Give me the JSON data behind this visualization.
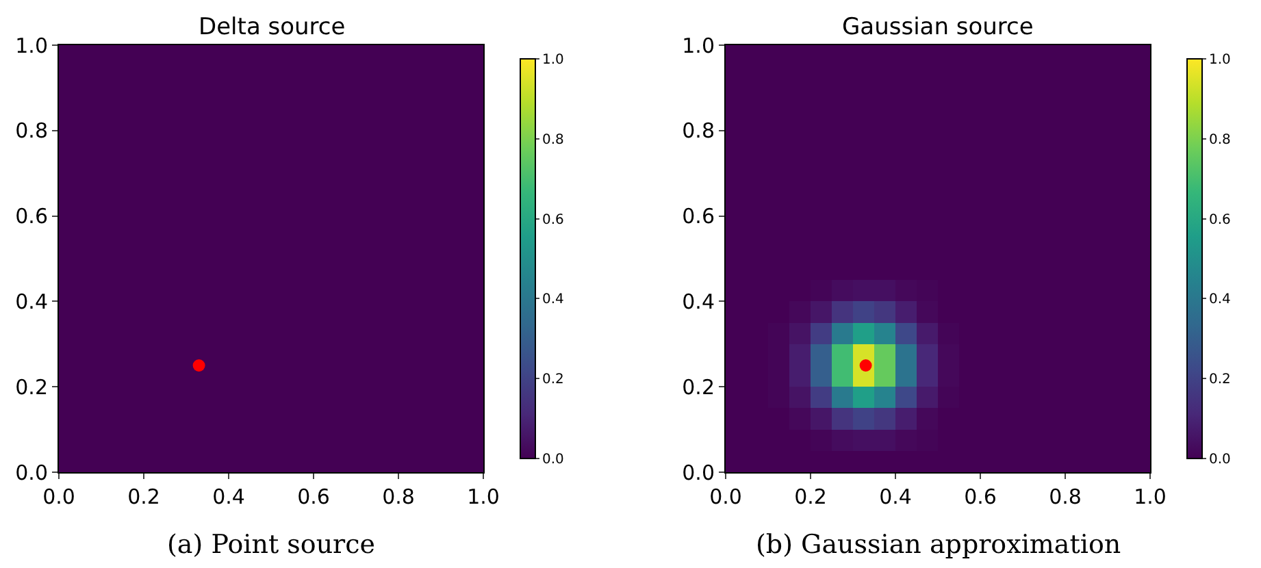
{
  "chart_data": [
    {
      "type": "heatmap",
      "title": "Delta source",
      "annotations": [
        "(a) Point source"
      ],
      "cells": [
        [
          0,
          0,
          0,
          0,
          0,
          0,
          0,
          0,
          0,
          0,
          0,
          0,
          0,
          0,
          0,
          0,
          0,
          0,
          0,
          0
        ],
        [
          0,
          0,
          0,
          0,
          0,
          0,
          0,
          0,
          0,
          0,
          0,
          0,
          0,
          0,
          0,
          0,
          0,
          0,
          0,
          0
        ],
        [
          0,
          0,
          0,
          0,
          0,
          0,
          0,
          0,
          0,
          0,
          0,
          0,
          0,
          0,
          0,
          0,
          0,
          0,
          0,
          0
        ],
        [
          0,
          0,
          0,
          0,
          0,
          0,
          0,
          0,
          0,
          0,
          0,
          0,
          0,
          0,
          0,
          0,
          0,
          0,
          0,
          0
        ],
        [
          0,
          0,
          0,
          0,
          0,
          0,
          0,
          0,
          0,
          0,
          0,
          0,
          0,
          0,
          0,
          0,
          0,
          0,
          0,
          0
        ],
        [
          0,
          0,
          0,
          0,
          0,
          0,
          0,
          0,
          0,
          0,
          0,
          0,
          0,
          0,
          0,
          0,
          0,
          0,
          0,
          0
        ],
        [
          0,
          0,
          0,
          0,
          0,
          0,
          0,
          0,
          0,
          0,
          0,
          0,
          0,
          0,
          0,
          0,
          0,
          0,
          0,
          0
        ],
        [
          0,
          0,
          0,
          0,
          0,
          0,
          0,
          0,
          0,
          0,
          0,
          0,
          0,
          0,
          0,
          0,
          0,
          0,
          0,
          0
        ],
        [
          0,
          0,
          0,
          0,
          0,
          0,
          0,
          0,
          0,
          0,
          0,
          0,
          0,
          0,
          0,
          0,
          0,
          0,
          0,
          0
        ],
        [
          0,
          0,
          0,
          0,
          0,
          0,
          0,
          0,
          0,
          0,
          0,
          0,
          0,
          0,
          0,
          0,
          0,
          0,
          0,
          0
        ],
        [
          0,
          0,
          0,
          0,
          0,
          0,
          0,
          0,
          0,
          0,
          0,
          0,
          0,
          0,
          0,
          0,
          0,
          0,
          0,
          0
        ],
        [
          0,
          0,
          0,
          0,
          0,
          0,
          0,
          0,
          0,
          0,
          0,
          0,
          0,
          0,
          0,
          0,
          0,
          0,
          0,
          0
        ],
        [
          0,
          0,
          0,
          0,
          0,
          0,
          0,
          0,
          0,
          0,
          0,
          0,
          0,
          0,
          0,
          0,
          0,
          0,
          0,
          0
        ],
        [
          0,
          0,
          0,
          0,
          0,
          0,
          0,
          0,
          0,
          0,
          0,
          0,
          0,
          0,
          0,
          0,
          0,
          0,
          0,
          0
        ],
        [
          0,
          0,
          0,
          0,
          0,
          0,
          0,
          0,
          0,
          0,
          0,
          0,
          0,
          0,
          0,
          0,
          0,
          0,
          0,
          0
        ],
        [
          0,
          0,
          0,
          0,
          0,
          0,
          0,
          0,
          0,
          0,
          0,
          0,
          0,
          0,
          0,
          0,
          0,
          0,
          0,
          0
        ],
        [
          0,
          0,
          0,
          0,
          0,
          0,
          0,
          0,
          0,
          0,
          0,
          0,
          0,
          0,
          0,
          0,
          0,
          0,
          0,
          0
        ],
        [
          0,
          0,
          0,
          0,
          0,
          0,
          0,
          0,
          0,
          0,
          0,
          0,
          0,
          0,
          0,
          0,
          0,
          0,
          0,
          0
        ],
        [
          0,
          0,
          0,
          0,
          0,
          0,
          0,
          0,
          0,
          0,
          0,
          0,
          0,
          0,
          0,
          0,
          0,
          0,
          0,
          0
        ],
        [
          0,
          0,
          0,
          0,
          0,
          0,
          0,
          0,
          0,
          0,
          0,
          0,
          0,
          0,
          0,
          0,
          0,
          0,
          0,
          0
        ]
      ],
      "clim": [
        0,
        1
      ],
      "cticks": [
        {
          "value": 0,
          "label": "0.0"
        },
        {
          "value": 0.2,
          "label": "0.2"
        },
        {
          "value": 0.4,
          "label": "0.4"
        },
        {
          "value": 0.6,
          "label": "0.6"
        },
        {
          "value": 0.8,
          "label": "0.8"
        },
        {
          "value": 1,
          "label": "1.0"
        }
      ],
      "xlim": [
        0,
        1
      ],
      "ylim": [
        0,
        1
      ],
      "xticks": [
        {
          "value": 0,
          "label": "0.0"
        },
        {
          "value": 0.2,
          "label": "0.2"
        },
        {
          "value": 0.4,
          "label": "0.4"
        },
        {
          "value": 0.6,
          "label": "0.6"
        },
        {
          "value": 0.8,
          "label": "0.8"
        },
        {
          "value": 1,
          "label": "1.0"
        }
      ],
      "yticks": [
        {
          "value": 0,
          "label": "0.0"
        },
        {
          "value": 0.2,
          "label": "0.2"
        },
        {
          "value": 0.4,
          "label": "0.4"
        },
        {
          "value": 0.6,
          "label": "0.6"
        },
        {
          "value": 0.8,
          "label": "0.8"
        },
        {
          "value": 1,
          "label": "1.0"
        }
      ],
      "series": [
        {
          "type": "scatter",
          "x": [
            0.33
          ],
          "values": [
            0.25
          ],
          "color": "#ff0000"
        }
      ],
      "marker": "circle"
    },
    {
      "type": "heatmap",
      "title": "Gaussian source",
      "annotations": [
        "(b) Gaussian approximation"
      ],
      "cells": [
        [
          0,
          0,
          0,
          0,
          0,
          0,
          0,
          0,
          0,
          0,
          0,
          0,
          0,
          0,
          0,
          0,
          0,
          0,
          0,
          0
        ],
        [
          0,
          0,
          0,
          0,
          0,
          0,
          0,
          0,
          0,
          0,
          0,
          0,
          0,
          0,
          0,
          0,
          0,
          0,
          0,
          0
        ],
        [
          0,
          0,
          0,
          0,
          0,
          0,
          0,
          0,
          0,
          0,
          0,
          0,
          0,
          0,
          0,
          0,
          0,
          0,
          0,
          0
        ],
        [
          0,
          0,
          0,
          0,
          0,
          0,
          0,
          0,
          0,
          0,
          0,
          0,
          0,
          0,
          0,
          0,
          0,
          0,
          0,
          0
        ],
        [
          0,
          0,
          0,
          0,
          0,
          0,
          0,
          0,
          0,
          0,
          0,
          0,
          0,
          0,
          0,
          0,
          0,
          0,
          0,
          0
        ],
        [
          0,
          0,
          0,
          0,
          0,
          0,
          0,
          0,
          0,
          0,
          0,
          0,
          0,
          0,
          0,
          0,
          0,
          0,
          0,
          0
        ],
        [
          0,
          0,
          0,
          0,
          0,
          0,
          0,
          0,
          0,
          0,
          0,
          0,
          0,
          0,
          0,
          0,
          0,
          0,
          0,
          0
        ],
        [
          0,
          0,
          0,
          0,
          0,
          0,
          0,
          0,
          0,
          0,
          0,
          0,
          0,
          0,
          0,
          0,
          0,
          0,
          0,
          0
        ],
        [
          0,
          0,
          0,
          0,
          0,
          0,
          0,
          0,
          0,
          0,
          0,
          0,
          0,
          0,
          0,
          0,
          0,
          0,
          0,
          0
        ],
        [
          0,
          0,
          0,
          0,
          0,
          0,
          0,
          0,
          0,
          0,
          0,
          0,
          0,
          0,
          0,
          0,
          0,
          0,
          0,
          0
        ],
        [
          0,
          0,
          0,
          0,
          0,
          0,
          0,
          0,
          0,
          0,
          0,
          0,
          0,
          0,
          0,
          0,
          0,
          0,
          0,
          0
        ],
        [
          0,
          0,
          0,
          0,
          0.01,
          0.03,
          0.04,
          0.04,
          0.02,
          0.01,
          0,
          0,
          0,
          0,
          0,
          0,
          0,
          0,
          0,
          0
        ],
        [
          0,
          0,
          0,
          0.02,
          0.06,
          0.15,
          0.2,
          0.16,
          0.08,
          0.02,
          0,
          0,
          0,
          0,
          0,
          0,
          0,
          0,
          0,
          0
        ],
        [
          0,
          0,
          0.01,
          0.05,
          0.18,
          0.41,
          0.56,
          0.45,
          0.22,
          0.07,
          0.01,
          0,
          0,
          0,
          0,
          0,
          0,
          0,
          0,
          0
        ],
        [
          0,
          0,
          0.01,
          0.08,
          0.3,
          0.69,
          0.94,
          0.76,
          0.38,
          0.11,
          0.02,
          0,
          0,
          0,
          0,
          0,
          0,
          0,
          0,
          0
        ],
        [
          0,
          0,
          0.01,
          0.08,
          0.3,
          0.69,
          0.94,
          0.76,
          0.38,
          0.11,
          0.02,
          0,
          0,
          0,
          0,
          0,
          0,
          0,
          0,
          0
        ],
        [
          0,
          0,
          0.01,
          0.05,
          0.18,
          0.41,
          0.56,
          0.45,
          0.22,
          0.07,
          0.01,
          0,
          0,
          0,
          0,
          0,
          0,
          0,
          0,
          0
        ],
        [
          0,
          0,
          0,
          0.02,
          0.06,
          0.15,
          0.2,
          0.16,
          0.08,
          0.02,
          0,
          0,
          0,
          0,
          0,
          0,
          0,
          0,
          0,
          0
        ],
        [
          0,
          0,
          0,
          0,
          0.01,
          0.03,
          0.04,
          0.04,
          0.02,
          0.01,
          0,
          0,
          0,
          0,
          0,
          0,
          0,
          0,
          0,
          0
        ],
        [
          0,
          0,
          0,
          0,
          0,
          0,
          0,
          0,
          0,
          0,
          0,
          0,
          0,
          0,
          0,
          0,
          0,
          0,
          0,
          0
        ]
      ],
      "clim": [
        0,
        1
      ],
      "cticks": [
        {
          "value": 0,
          "label": "0.0"
        },
        {
          "value": 0.2,
          "label": "0.2"
        },
        {
          "value": 0.4,
          "label": "0.4"
        },
        {
          "value": 0.6,
          "label": "0.6"
        },
        {
          "value": 0.8,
          "label": "0.8"
        },
        {
          "value": 1,
          "label": "1.0"
        }
      ],
      "xlim": [
        0,
        1
      ],
      "ylim": [
        0,
        1
      ],
      "xticks": [
        {
          "value": 0,
          "label": "0.0"
        },
        {
          "value": 0.2,
          "label": "0.2"
        },
        {
          "value": 0.4,
          "label": "0.4"
        },
        {
          "value": 0.6,
          "label": "0.6"
        },
        {
          "value": 0.8,
          "label": "0.8"
        },
        {
          "value": 1,
          "label": "1.0"
        }
      ],
      "yticks": [
        {
          "value": 0,
          "label": "0.0"
        },
        {
          "value": 0.2,
          "label": "0.2"
        },
        {
          "value": 0.4,
          "label": "0.4"
        },
        {
          "value": 0.6,
          "label": "0.6"
        },
        {
          "value": 0.8,
          "label": "0.8"
        },
        {
          "value": 1,
          "label": "1.0"
        }
      ],
      "series": [
        {
          "type": "scatter",
          "x": [
            0.33
          ],
          "values": [
            0.25
          ],
          "color": "#ff0000"
        }
      ],
      "marker": "circle"
    }
  ]
}
